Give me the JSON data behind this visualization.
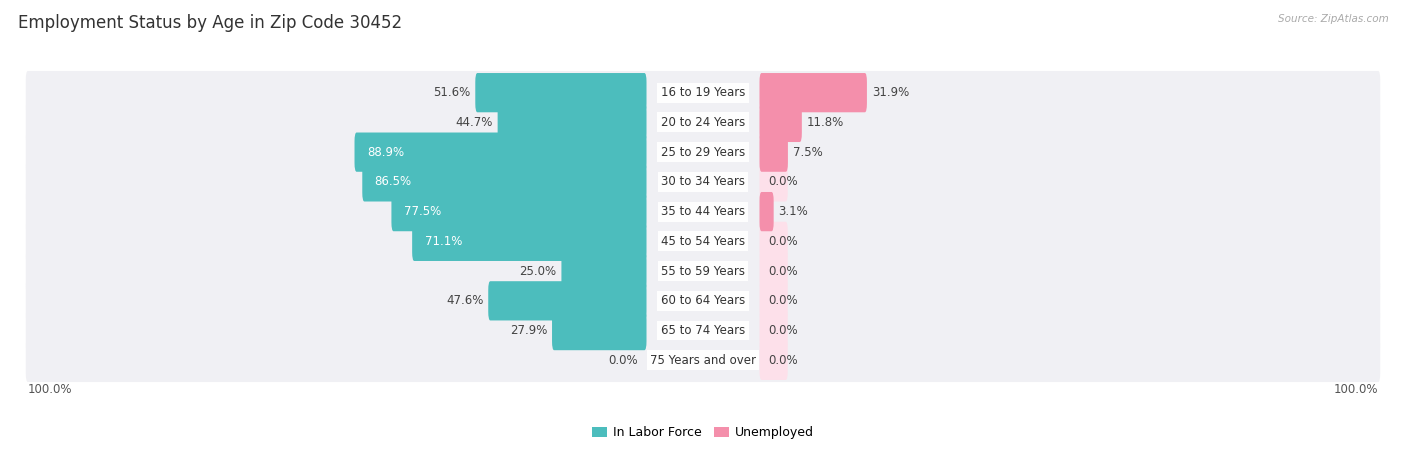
{
  "title": "Employment Status by Age in Zip Code 30452",
  "source": "Source: ZipAtlas.com",
  "categories": [
    "16 to 19 Years",
    "20 to 24 Years",
    "25 to 29 Years",
    "30 to 34 Years",
    "35 to 44 Years",
    "45 to 54 Years",
    "55 to 59 Years",
    "60 to 64 Years",
    "65 to 74 Years",
    "75 Years and over"
  ],
  "in_labor_force": [
    51.6,
    44.7,
    88.9,
    86.5,
    77.5,
    71.1,
    25.0,
    47.6,
    27.9,
    0.0
  ],
  "unemployed": [
    31.9,
    11.8,
    7.5,
    0.0,
    3.1,
    0.0,
    0.0,
    0.0,
    0.0,
    0.0
  ],
  "labor_color": "#4CBDBD",
  "unemployed_color": "#F48FAB",
  "bar_background": "#e8e8ec",
  "row_bg": "#f0f0f4",
  "title_fontsize": 12,
  "label_fontsize": 8.5,
  "value_fontsize": 8.5,
  "legend_fontsize": 9,
  "max_value": 100.0,
  "label_inside_color": "#ffffff",
  "label_outside_color": "#444444",
  "inside_threshold": 60.0
}
